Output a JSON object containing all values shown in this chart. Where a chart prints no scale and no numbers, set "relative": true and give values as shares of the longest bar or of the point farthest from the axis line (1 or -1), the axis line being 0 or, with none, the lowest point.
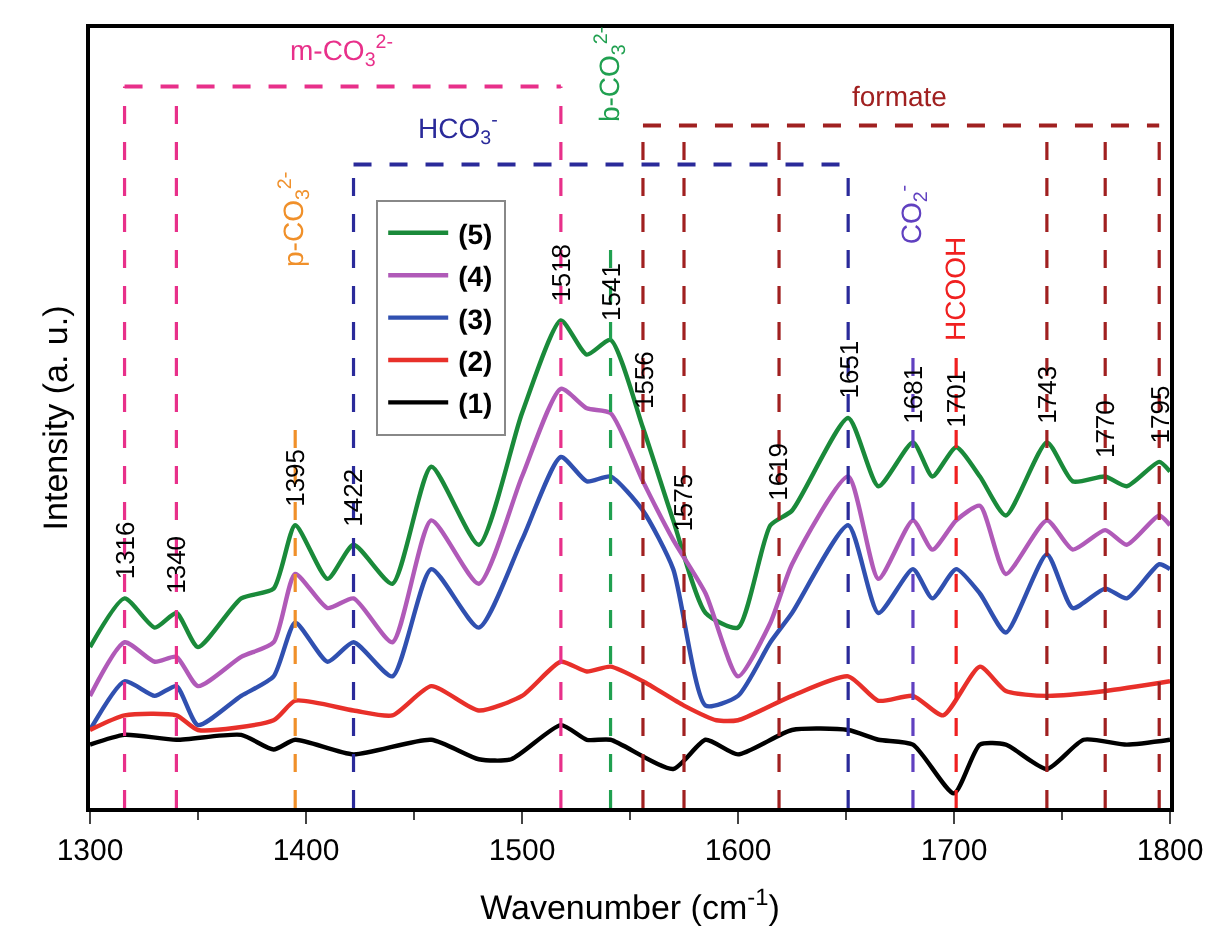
{
  "chart_data": {
    "type": "line",
    "relative": true,
    "xlabel": "Wavenumber (cm$^{-1}$)",
    "ylabel": "Intensity (a. u.)",
    "xlim": [
      1300,
      1800
    ],
    "xticks": [
      1300,
      1400,
      1500,
      1600,
      1700,
      1800
    ],
    "legend": "top left",
    "line_style": "solid",
    "marker": "none",
    "series": [
      {
        "name": "(5)",
        "color": "#1a8a3a",
        "x": [
          1300,
          1316,
          1330,
          1340,
          1350,
          1370,
          1385,
          1395,
          1410,
          1422,
          1440,
          1458,
          1480,
          1500,
          1518,
          1530,
          1541,
          1556,
          1570,
          1585,
          1600,
          1615,
          1625,
          1651,
          1665,
          1681,
          1690,
          1701,
          1712,
          1724,
          1743,
          1755,
          1770,
          1780,
          1795,
          1800
        ],
        "values": [
          0.33,
          0.43,
          0.37,
          0.4,
          0.33,
          0.43,
          0.45,
          0.58,
          0.47,
          0.54,
          0.46,
          0.7,
          0.54,
          0.81,
          1.0,
          0.93,
          0.96,
          0.78,
          0.59,
          0.4,
          0.37,
          0.58,
          0.61,
          0.8,
          0.66,
          0.75,
          0.68,
          0.74,
          0.68,
          0.6,
          0.75,
          0.67,
          0.68,
          0.66,
          0.71,
          0.69
        ]
      },
      {
        "name": "(4)",
        "color": "#b05ab8",
        "x": [
          1300,
          1316,
          1330,
          1340,
          1350,
          1370,
          1385,
          1395,
          1410,
          1422,
          1440,
          1458,
          1480,
          1500,
          1518,
          1530,
          1541,
          1556,
          1570,
          1585,
          1600,
          1615,
          1625,
          1651,
          1665,
          1681,
          1690,
          1701,
          1712,
          1724,
          1743,
          1755,
          1770,
          1780,
          1795,
          1800
        ],
        "values": [
          0.23,
          0.34,
          0.3,
          0.31,
          0.25,
          0.31,
          0.34,
          0.48,
          0.41,
          0.43,
          0.34,
          0.59,
          0.46,
          0.68,
          0.86,
          0.82,
          0.81,
          0.67,
          0.55,
          0.44,
          0.27,
          0.38,
          0.5,
          0.68,
          0.47,
          0.59,
          0.53,
          0.59,
          0.62,
          0.48,
          0.59,
          0.53,
          0.57,
          0.54,
          0.6,
          0.58
        ]
      },
      {
        "name": "(3)",
        "color": "#3050b0",
        "x": [
          1300,
          1316,
          1330,
          1340,
          1350,
          1370,
          1385,
          1395,
          1410,
          1422,
          1440,
          1458,
          1480,
          1500,
          1518,
          1530,
          1541,
          1556,
          1570,
          1585,
          1600,
          1615,
          1625,
          1651,
          1665,
          1681,
          1690,
          1701,
          1712,
          1724,
          1743,
          1755,
          1770,
          1780,
          1795,
          1800
        ],
        "values": [
          0.16,
          0.26,
          0.23,
          0.25,
          0.17,
          0.23,
          0.27,
          0.38,
          0.3,
          0.34,
          0.27,
          0.49,
          0.37,
          0.55,
          0.72,
          0.67,
          0.68,
          0.61,
          0.49,
          0.21,
          0.23,
          0.34,
          0.4,
          0.58,
          0.4,
          0.49,
          0.43,
          0.49,
          0.44,
          0.36,
          0.52,
          0.41,
          0.45,
          0.43,
          0.5,
          0.49
        ]
      },
      {
        "name": "(2)",
        "color": "#e8302a",
        "x": [
          1300,
          1316,
          1340,
          1350,
          1385,
          1395,
          1422,
          1440,
          1458,
          1480,
          1500,
          1518,
          1530,
          1541,
          1556,
          1575,
          1590,
          1600,
          1625,
          1651,
          1665,
          1681,
          1695,
          1712,
          1724,
          1743,
          1770,
          1800
        ],
        "values": [
          0.16,
          0.19,
          0.19,
          0.16,
          0.18,
          0.22,
          0.2,
          0.19,
          0.25,
          0.2,
          0.23,
          0.3,
          0.28,
          0.29,
          0.26,
          0.21,
          0.18,
          0.18,
          0.23,
          0.27,
          0.22,
          0.23,
          0.19,
          0.29,
          0.24,
          0.23,
          0.24,
          0.26
        ]
      },
      {
        "name": "(1)",
        "color": "#000000",
        "x": [
          1300,
          1316,
          1340,
          1370,
          1385,
          1395,
          1422,
          1458,
          1480,
          1495,
          1518,
          1530,
          1541,
          1570,
          1585,
          1600,
          1625,
          1651,
          1665,
          1681,
          1700,
          1712,
          1724,
          1743,
          1760,
          1780,
          1800
        ],
        "values": [
          0.13,
          0.15,
          0.14,
          0.15,
          0.12,
          0.14,
          0.11,
          0.14,
          0.1,
          0.1,
          0.17,
          0.14,
          0.14,
          0.08,
          0.14,
          0.11,
          0.16,
          0.16,
          0.14,
          0.13,
          0.03,
          0.13,
          0.13,
          0.08,
          0.14,
          0.13,
          0.14
        ]
      }
    ],
    "ref_lines": [
      {
        "axis": "x",
        "value": 1316,
        "label": "1316",
        "color": "#e8308a",
        "line_style": "dashed"
      },
      {
        "axis": "x",
        "value": 1340,
        "label": "1340",
        "color": "#e8308a",
        "line_style": "dashed"
      },
      {
        "axis": "x",
        "value": 1395,
        "label": "1395",
        "color": "#f0902a",
        "line_style": "dashed"
      },
      {
        "axis": "x",
        "value": 1422,
        "label": "1422",
        "color": "#2a2a9a",
        "line_style": "dashed"
      },
      {
        "axis": "x",
        "value": 1518,
        "label": "1518",
        "color": "#e8308a",
        "line_style": "dashed"
      },
      {
        "axis": "x",
        "value": 1541,
        "label": "1541",
        "color": "#20a050",
        "line_style": "dashed"
      },
      {
        "axis": "x",
        "value": 1556,
        "label": "1556",
        "color": "#a02020",
        "line_style": "dashed"
      },
      {
        "axis": "x",
        "value": 1575,
        "label": "1575",
        "color": "#a02020",
        "line_style": "dashed"
      },
      {
        "axis": "x",
        "value": 1619,
        "label": "1619",
        "color": "#a02020",
        "line_style": "dashed"
      },
      {
        "axis": "x",
        "value": 1651,
        "label": "1651",
        "color": "#2a2a9a",
        "line_style": "dashed"
      },
      {
        "axis": "x",
        "value": 1681,
        "label": "1681",
        "color": "#6040c0",
        "line_style": "dashed"
      },
      {
        "axis": "x",
        "value": 1701,
        "label": "1701",
        "color": "#f02020",
        "line_style": "dashed"
      },
      {
        "axis": "x",
        "value": 1743,
        "label": "1743",
        "color": "#a02020",
        "line_style": "dashed"
      },
      {
        "axis": "x",
        "value": 1770,
        "label": "1770",
        "color": "#a02020",
        "line_style": "dashed"
      },
      {
        "axis": "x",
        "value": 1795,
        "label": "1795",
        "color": "#a02020",
        "line_style": "dashed"
      }
    ],
    "annotations": [
      "m-CO$_{3}$$^{2-}$",
      "HCO$_{3}$$^{-}$",
      "formate",
      "b-CO$_{3}$$^{2-}$",
      "p-CO$_{3}$$^{2-}$",
      "CO$_{2}$$^{-}$",
      "HCOOH"
    ]
  }
}
